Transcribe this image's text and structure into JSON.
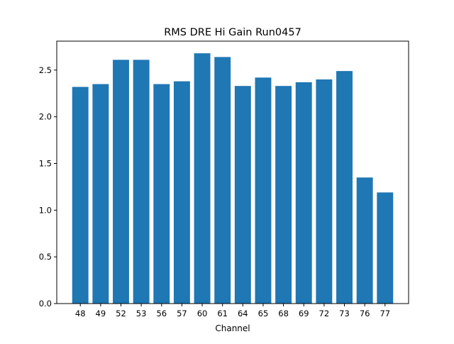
{
  "chart_data": {
    "type": "bar",
    "title": "RMS DRE Hi Gain Run0457",
    "xlabel": "Channel",
    "ylabel": "",
    "categories": [
      "48",
      "49",
      "52",
      "53",
      "56",
      "57",
      "60",
      "61",
      "64",
      "65",
      "68",
      "69",
      "72",
      "73",
      "76",
      "77"
    ],
    "values": [
      2.32,
      2.35,
      2.61,
      2.61,
      2.35,
      2.38,
      2.68,
      2.64,
      2.33,
      2.42,
      2.33,
      2.37,
      2.4,
      2.49,
      1.35,
      1.19
    ],
    "ylim": [
      0,
      2.81
    ],
    "yticks": [
      "0.0",
      "0.5",
      "1.0",
      "1.5",
      "2.0",
      "2.5"
    ],
    "bar_color": "#1f77b4",
    "grid": false,
    "legend": false
  }
}
